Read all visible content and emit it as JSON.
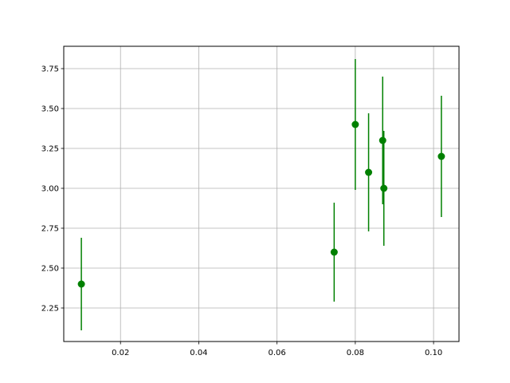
{
  "chart_data": {
    "type": "scatter",
    "title": "",
    "xlabel": "",
    "ylabel": "",
    "xlim": [
      0.0055,
      0.1065
    ],
    "ylim": [
      2.04,
      3.89
    ],
    "x_ticks": [
      0.02,
      0.04,
      0.06,
      0.08,
      0.1
    ],
    "x_tick_labels": [
      "0.02",
      "0.04",
      "0.06",
      "0.08",
      "0.10"
    ],
    "y_ticks": [
      2.25,
      2.5,
      2.75,
      3.0,
      3.25,
      3.5,
      3.75
    ],
    "y_tick_labels": [
      "2.25",
      "2.50",
      "2.75",
      "3.00",
      "3.25",
      "3.50",
      "3.75"
    ],
    "grid": true,
    "colors": {
      "series": "#008000",
      "grid": "#b0b0b0",
      "axes": "#000000"
    },
    "series": [
      {
        "points": [
          {
            "x": 0.01,
            "y": 2.4,
            "err": 0.29
          },
          {
            "x": 0.0746,
            "y": 2.6,
            "err": 0.31
          },
          {
            "x": 0.08,
            "y": 3.4,
            "err": 0.41
          },
          {
            "x": 0.0834,
            "y": 3.1,
            "err": 0.37
          },
          {
            "x": 0.087,
            "y": 3.3,
            "err": 0.4
          },
          {
            "x": 0.0873,
            "y": 3.0,
            "err": 0.36
          },
          {
            "x": 0.102,
            "y": 3.2,
            "err": 0.38
          }
        ]
      }
    ]
  }
}
